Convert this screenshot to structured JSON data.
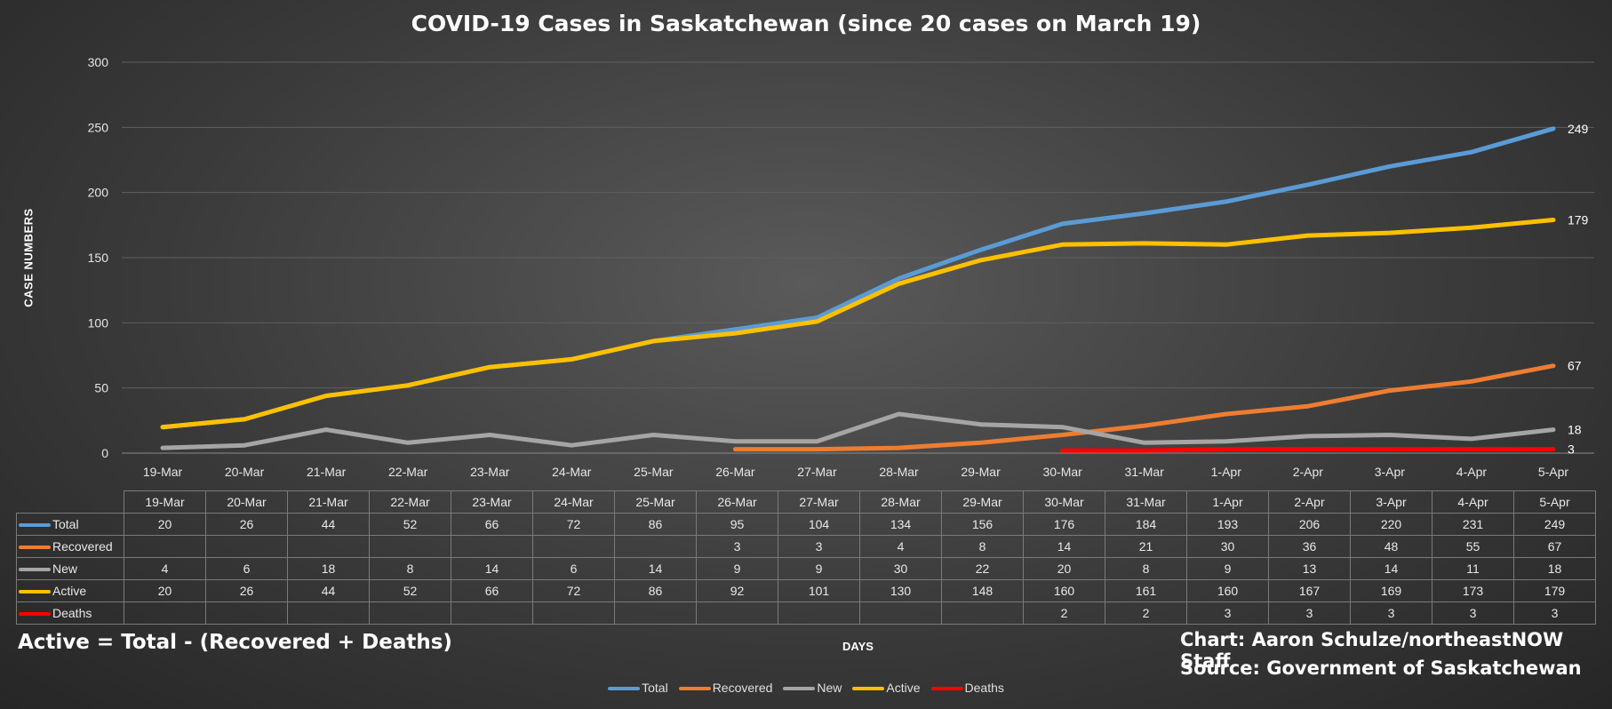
{
  "chart_data": {
    "type": "line",
    "title": "COVID-19 Cases in Saskatchewan (since 20 cases on March 19)",
    "xlabel": "DAYS",
    "ylabel": "CASE NUMBERS",
    "ylim": [
      0,
      300
    ],
    "yticks": [
      0,
      50,
      100,
      150,
      200,
      250,
      300
    ],
    "grid": true,
    "legend_position": "bottom",
    "categories": [
      "19-Mar",
      "20-Mar",
      "21-Mar",
      "22-Mar",
      "23-Mar",
      "24-Mar",
      "25-Mar",
      "26-Mar",
      "27-Mar",
      "28-Mar",
      "29-Mar",
      "30-Mar",
      "31-Mar",
      "1-Apr",
      "2-Apr",
      "3-Apr",
      "4-Apr",
      "5-Apr"
    ],
    "series": [
      {
        "name": "Total",
        "color": "#5b9bd5",
        "values": [
          20,
          26,
          44,
          52,
          66,
          72,
          86,
          95,
          104,
          134,
          156,
          176,
          184,
          193,
          206,
          220,
          231,
          249
        ]
      },
      {
        "name": "Recovered",
        "color": "#ed7d31",
        "values": [
          null,
          null,
          null,
          null,
          null,
          null,
          null,
          3,
          3,
          4,
          8,
          14,
          21,
          30,
          36,
          48,
          55,
          67
        ]
      },
      {
        "name": "New",
        "color": "#a5a5a5",
        "values": [
          4,
          6,
          18,
          8,
          14,
          6,
          14,
          9,
          9,
          30,
          22,
          20,
          8,
          9,
          13,
          14,
          11,
          18
        ]
      },
      {
        "name": "Active",
        "color": "#ffc000",
        "values": [
          20,
          26,
          44,
          52,
          66,
          72,
          86,
          92,
          101,
          130,
          148,
          160,
          161,
          160,
          167,
          169,
          173,
          179
        ]
      },
      {
        "name": "Deaths",
        "color": "#ff0000",
        "values": [
          null,
          null,
          null,
          null,
          null,
          null,
          null,
          null,
          null,
          null,
          null,
          2,
          2,
          3,
          3,
          3,
          3,
          3
        ]
      }
    ],
    "end_labels": [
      "249",
      "67",
      "18",
      "179",
      "3"
    ]
  },
  "footer": {
    "formula": "Active = Total - (Recovered + Deaths)",
    "credit": "Chart: Aaron Schulze/northeastNOW Staff",
    "source": "Source: Government of Saskatchewan"
  }
}
